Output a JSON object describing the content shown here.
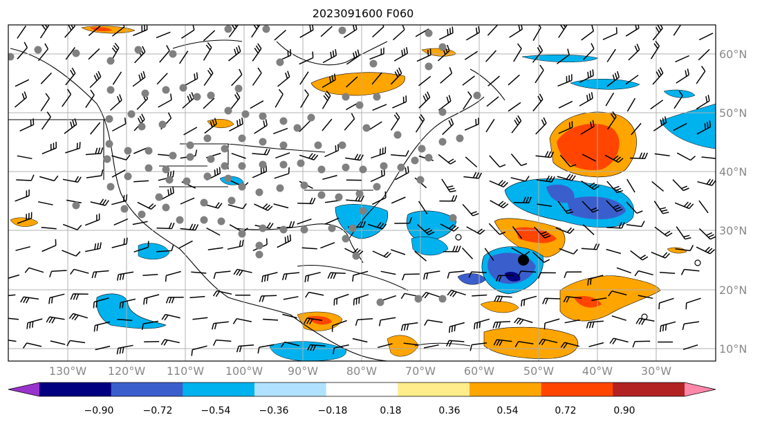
{
  "title": "2023091600 F060",
  "lat_labels": [
    "60°N",
    "50°N",
    "40°N",
    "30°N",
    "20°N",
    "10°N"
  ],
  "lon_labels": [
    "130°W",
    "120°W",
    "110°W",
    "100°W",
    "90°W",
    "80°W",
    "70°W",
    "60°W",
    "50°W",
    "40°W",
    "30°W"
  ],
  "colorbar": {
    "colors": [
      "#9933cc",
      "#000080",
      "#3a5fcd",
      "#00b2ee",
      "#b0e2ff",
      "#ffffff",
      "#ffec8b",
      "#ffa500",
      "#ff4500",
      "#b22222",
      "#ff88aa"
    ],
    "labels": [
      "−0.90",
      "−0.72",
      "−0.54",
      "−0.36",
      "−0.18",
      "0.18",
      "0.36",
      "0.54",
      "0.72",
      "0.90"
    ]
  },
  "legend_colors": {
    "storm_marker": "#000000",
    "station_dot": "#808080",
    "grid": "#b0b0b0"
  }
}
